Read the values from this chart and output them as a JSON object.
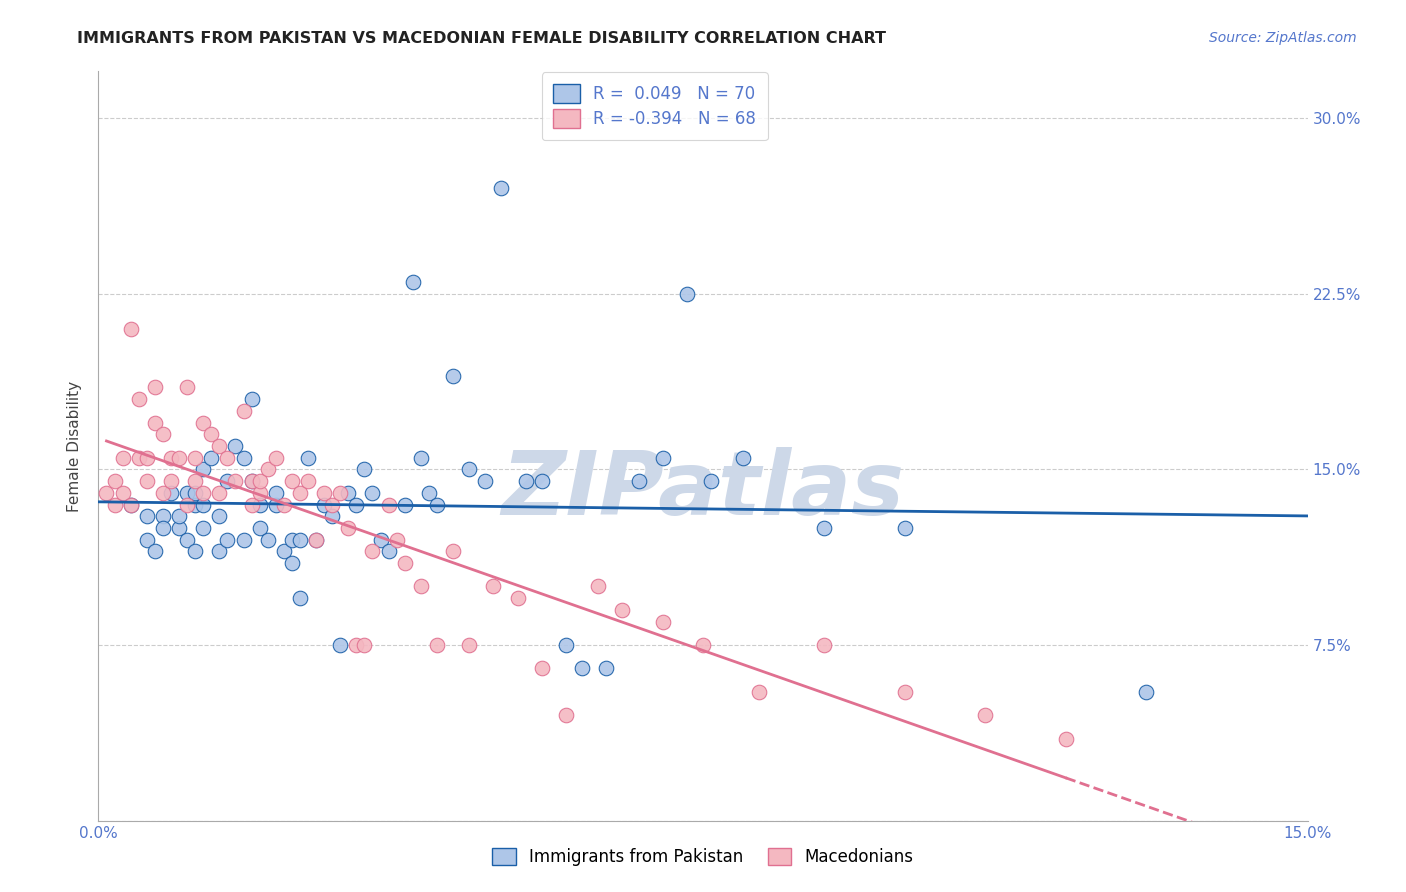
{
  "title": "IMMIGRANTS FROM PAKISTAN VS MACEDONIAN FEMALE DISABILITY CORRELATION CHART",
  "source": "Source: ZipAtlas.com",
  "ylabel": "Female Disability",
  "xlim": [
    0.0,
    0.15
  ],
  "ylim": [
    0.0,
    0.32
  ],
  "color_pakistan": "#aec6e8",
  "color_macedonian": "#f4b8c1",
  "line_color_pakistan": "#1a5fa8",
  "line_color_macedonian": "#e07090",
  "watermark": "ZIPatlas",
  "watermark_color": "#cdd8e8",
  "legend_label_1": "Immigrants from Pakistan",
  "legend_label_2": "Macedonians",
  "tick_color": "#5577cc",
  "title_color": "#222222",
  "source_color": "#5577cc",
  "grid_color": "#cccccc",
  "pakistan_x": [
    0.004,
    0.006,
    0.006,
    0.007,
    0.008,
    0.008,
    0.009,
    0.01,
    0.01,
    0.011,
    0.011,
    0.012,
    0.012,
    0.012,
    0.013,
    0.013,
    0.013,
    0.014,
    0.015,
    0.015,
    0.016,
    0.016,
    0.017,
    0.018,
    0.018,
    0.019,
    0.019,
    0.02,
    0.02,
    0.021,
    0.022,
    0.022,
    0.023,
    0.024,
    0.024,
    0.025,
    0.025,
    0.026,
    0.027,
    0.028,
    0.029,
    0.03,
    0.031,
    0.032,
    0.033,
    0.034,
    0.035,
    0.036,
    0.038,
    0.039,
    0.04,
    0.041,
    0.042,
    0.044,
    0.046,
    0.048,
    0.05,
    0.053,
    0.055,
    0.058,
    0.06,
    0.063,
    0.067,
    0.07,
    0.073,
    0.076,
    0.08,
    0.09,
    0.1,
    0.13
  ],
  "pakistan_y": [
    0.135,
    0.12,
    0.13,
    0.115,
    0.13,
    0.125,
    0.14,
    0.125,
    0.13,
    0.14,
    0.12,
    0.115,
    0.135,
    0.14,
    0.125,
    0.135,
    0.15,
    0.155,
    0.13,
    0.115,
    0.12,
    0.145,
    0.16,
    0.12,
    0.155,
    0.18,
    0.145,
    0.135,
    0.125,
    0.12,
    0.135,
    0.14,
    0.115,
    0.12,
    0.11,
    0.095,
    0.12,
    0.155,
    0.12,
    0.135,
    0.13,
    0.075,
    0.14,
    0.135,
    0.15,
    0.14,
    0.12,
    0.115,
    0.135,
    0.23,
    0.155,
    0.14,
    0.135,
    0.19,
    0.15,
    0.145,
    0.27,
    0.145,
    0.145,
    0.075,
    0.065,
    0.065,
    0.145,
    0.155,
    0.225,
    0.145,
    0.155,
    0.125,
    0.125,
    0.055
  ],
  "macedonian_x": [
    0.001,
    0.002,
    0.002,
    0.003,
    0.003,
    0.004,
    0.004,
    0.005,
    0.005,
    0.006,
    0.006,
    0.007,
    0.007,
    0.008,
    0.008,
    0.009,
    0.009,
    0.01,
    0.011,
    0.011,
    0.012,
    0.012,
    0.013,
    0.013,
    0.014,
    0.015,
    0.015,
    0.016,
    0.017,
    0.018,
    0.019,
    0.019,
    0.02,
    0.02,
    0.021,
    0.022,
    0.023,
    0.024,
    0.025,
    0.026,
    0.027,
    0.028,
    0.029,
    0.03,
    0.031,
    0.032,
    0.033,
    0.034,
    0.036,
    0.037,
    0.038,
    0.04,
    0.042,
    0.044,
    0.046,
    0.049,
    0.052,
    0.055,
    0.058,
    0.062,
    0.065,
    0.07,
    0.075,
    0.082,
    0.09,
    0.1,
    0.11,
    0.12
  ],
  "macedonian_y": [
    0.14,
    0.145,
    0.135,
    0.155,
    0.14,
    0.135,
    0.21,
    0.155,
    0.18,
    0.145,
    0.155,
    0.17,
    0.185,
    0.14,
    0.165,
    0.155,
    0.145,
    0.155,
    0.135,
    0.185,
    0.145,
    0.155,
    0.14,
    0.17,
    0.165,
    0.14,
    0.16,
    0.155,
    0.145,
    0.175,
    0.135,
    0.145,
    0.14,
    0.145,
    0.15,
    0.155,
    0.135,
    0.145,
    0.14,
    0.145,
    0.12,
    0.14,
    0.135,
    0.14,
    0.125,
    0.075,
    0.075,
    0.115,
    0.135,
    0.12,
    0.11,
    0.1,
    0.075,
    0.115,
    0.075,
    0.1,
    0.095,
    0.065,
    0.045,
    0.1,
    0.09,
    0.085,
    0.075,
    0.055,
    0.075,
    0.055,
    0.045,
    0.035
  ]
}
